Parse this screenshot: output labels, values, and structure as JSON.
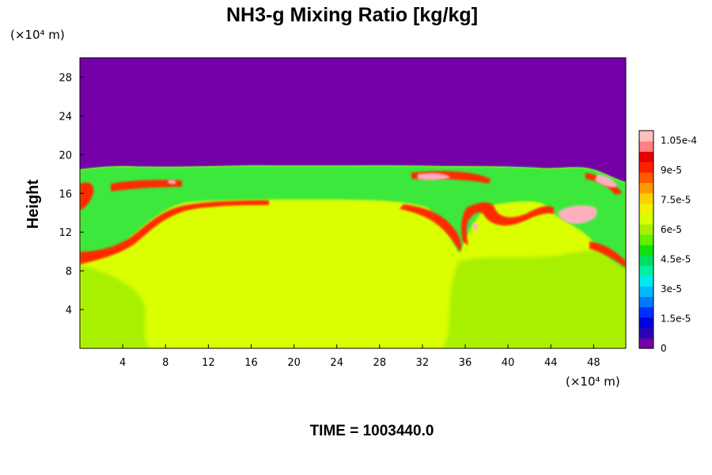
{
  "chart_data": {
    "type": "heatmap",
    "title": "NH3-g Mixing Ratio [kg/kg]",
    "ylabel": "Height",
    "x_unit_label": "(×10⁴ m)",
    "y_unit_label": "(×10⁴ m)",
    "x_ticks": [
      4,
      8,
      12,
      16,
      20,
      24,
      28,
      32,
      36,
      40,
      44,
      48
    ],
    "y_ticks": [
      4,
      8,
      12,
      16,
      20,
      24,
      28
    ],
    "xlim": [
      0,
      51
    ],
    "ylim": [
      0,
      30
    ],
    "colorbar": {
      "min": 0,
      "max": 0.00011,
      "labels": [
        "0",
        "1.5e-5",
        "3e-5",
        "4.5e-5",
        "6e-5",
        "7.5e-5",
        "9e-5",
        "1.05e-4"
      ],
      "label_values": [
        0,
        1.5e-05,
        3e-05,
        4.5e-05,
        6e-05,
        7.5e-05,
        9e-05,
        0.000105
      ],
      "colors": [
        "#7500a8",
        "#2a00b8",
        "#0000e0",
        "#0030ff",
        "#0078ff",
        "#00b8ff",
        "#00e8f0",
        "#00f0a0",
        "#00e060",
        "#10e010",
        "#60f000",
        "#a8f000",
        "#d8ff00",
        "#f0f000",
        "#ffd000",
        "#ff9a00",
        "#ff5a00",
        "#ff2000",
        "#e80000",
        "#ff8080",
        "#ffc0c0"
      ]
    },
    "fields": [
      {
        "name": "background",
        "value": 7.8e-05,
        "color": "#d9ff00"
      },
      {
        "name": "upper",
        "value": 0,
        "color": "#7500a8"
      },
      {
        "name": "cloud-band",
        "value": 6.2e-05,
        "color": "#3ee83e"
      },
      {
        "name": "lower-left-plume",
        "value": 7e-05,
        "color": "#a8f000"
      },
      {
        "name": "lower-right-plume",
        "value": 7e-05,
        "color": "#a8f000"
      },
      {
        "name": "high-band",
        "value": 0.0001,
        "color": "#ff2a00"
      },
      {
        "name": "peak-spots",
        "value": 0.000108,
        "color": "#ffb0c0"
      }
    ]
  },
  "time_label": "TIME = 1003440.0"
}
